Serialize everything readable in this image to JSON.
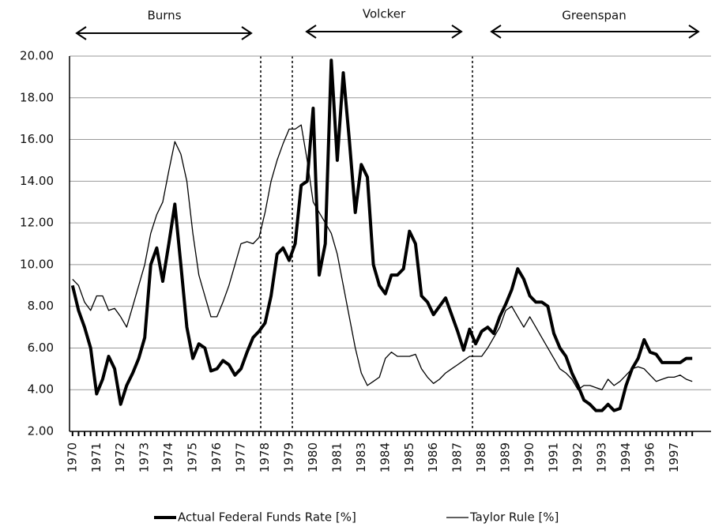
{
  "chart_data": {
    "type": "line",
    "annotations": [
      "Burns",
      "Volcker",
      "Greenspan"
    ],
    "categories": [
      "1970",
      null,
      null,
      null,
      "1971",
      null,
      null,
      null,
      "1972",
      null,
      null,
      null,
      "1973",
      null,
      null,
      null,
      "1974",
      null,
      null,
      null,
      "1975",
      null,
      null,
      null,
      "1976",
      null,
      null,
      null,
      "1977",
      null,
      null,
      null,
      "1978",
      null,
      null,
      null,
      "1979",
      null,
      null,
      null,
      "1980",
      null,
      null,
      null,
      "1981",
      null,
      null,
      null,
      "1983",
      null,
      null,
      null,
      "1984",
      null,
      null,
      null,
      "1985",
      null,
      null,
      null,
      "1986",
      null,
      null,
      null,
      "1987",
      null,
      null,
      null,
      "1988",
      null,
      null,
      null,
      "1989",
      null,
      null,
      null,
      "1990",
      null,
      null,
      null,
      "1991",
      null,
      null,
      null,
      "1992",
      null,
      null,
      null,
      "1993",
      null,
      null,
      null,
      "1994",
      null,
      null,
      null,
      "1996",
      null,
      null,
      null,
      "1997",
      null,
      null,
      null
    ],
    "series": [
      {
        "name": "Actual Federal Funds Rate [%]",
        "color": "#000000",
        "width": 4,
        "values": [
          9.0,
          7.8,
          7.0,
          6.0,
          3.8,
          4.5,
          5.6,
          5.0,
          3.3,
          4.2,
          4.8,
          5.5,
          6.5,
          10.0,
          10.8,
          9.2,
          11.0,
          12.9,
          10.0,
          7.0,
          5.5,
          6.2,
          6.0,
          4.9,
          5.0,
          5.4,
          5.2,
          4.7,
          5.0,
          5.8,
          6.5,
          6.8,
          7.2,
          8.5,
          10.5,
          10.8,
          10.2,
          11.0,
          13.8,
          14.0,
          17.5,
          9.5,
          11.0,
          19.8,
          15.0,
          19.2,
          16.0,
          12.5,
          14.8,
          14.2,
          10.0,
          9.0,
          8.6,
          9.5,
          9.5,
          9.8,
          11.6,
          11.0,
          8.5,
          8.2,
          7.6,
          8.0,
          8.4,
          7.6,
          6.8,
          5.9,
          6.9,
          6.2,
          6.8,
          7.0,
          6.7,
          7.5,
          8.1,
          8.8,
          9.8,
          9.3,
          8.5,
          8.2,
          8.2,
          8.0,
          6.7,
          6.0,
          5.6,
          4.8,
          4.2,
          3.5,
          3.3,
          3.0,
          3.0,
          3.3,
          3.0,
          3.1,
          4.2,
          5.0,
          5.5,
          6.4,
          5.8,
          5.7,
          5.3,
          5.3,
          5.3,
          5.3,
          5.5,
          5.5
        ]
      },
      {
        "name": "Taylor Rule [%]",
        "color": "#000000",
        "width": 1.3,
        "values": [
          9.3,
          9.0,
          8.2,
          7.8,
          8.5,
          8.5,
          7.8,
          7.9,
          7.5,
          7.0,
          8.0,
          9.0,
          10.0,
          11.5,
          12.4,
          13.0,
          14.5,
          15.9,
          15.3,
          14.0,
          11.5,
          9.5,
          8.5,
          7.5,
          7.5,
          8.2,
          9.0,
          10.0,
          11.0,
          11.1,
          11.0,
          11.3,
          12.5,
          14.0,
          15.0,
          15.8,
          16.5,
          16.5,
          16.7,
          15.0,
          13.0,
          12.5,
          12.0,
          11.5,
          10.5,
          9.0,
          7.5,
          6.0,
          4.8,
          4.2,
          4.4,
          4.6,
          5.5,
          5.8,
          5.6,
          5.6,
          5.6,
          5.7,
          5.0,
          4.6,
          4.3,
          4.5,
          4.8,
          5.0,
          5.2,
          5.4,
          5.6,
          5.6,
          5.6,
          6.0,
          6.5,
          7.0,
          7.8,
          8.0,
          7.5,
          7.0,
          7.5,
          7.0,
          6.5,
          6.0,
          5.5,
          5.0,
          4.8,
          4.5,
          4.0,
          4.2,
          4.2,
          4.1,
          4.0,
          4.5,
          4.2,
          4.4,
          4.7,
          5.0,
          5.1,
          5.0,
          4.7,
          4.4,
          4.5,
          4.6,
          4.6,
          4.7,
          4.5,
          4.4
        ]
      }
    ],
    "ylim": [
      2,
      20
    ],
    "yticks": [
      {
        "value": 2,
        "label": "2.00"
      },
      {
        "value": 4,
        "label": "4.00"
      },
      {
        "value": 6,
        "label": "6.00"
      },
      {
        "value": 8,
        "label": "8.00"
      },
      {
        "value": 10,
        "label": "10.00"
      },
      {
        "value": 12,
        "label": "12.00"
      },
      {
        "value": 14,
        "label": "14.00"
      },
      {
        "value": 16,
        "label": "16.00"
      },
      {
        "value": 18,
        "label": "18.00"
      },
      {
        "value": 20,
        "label": "20.00"
      }
    ],
    "grid": true,
    "legend": "bottom"
  }
}
